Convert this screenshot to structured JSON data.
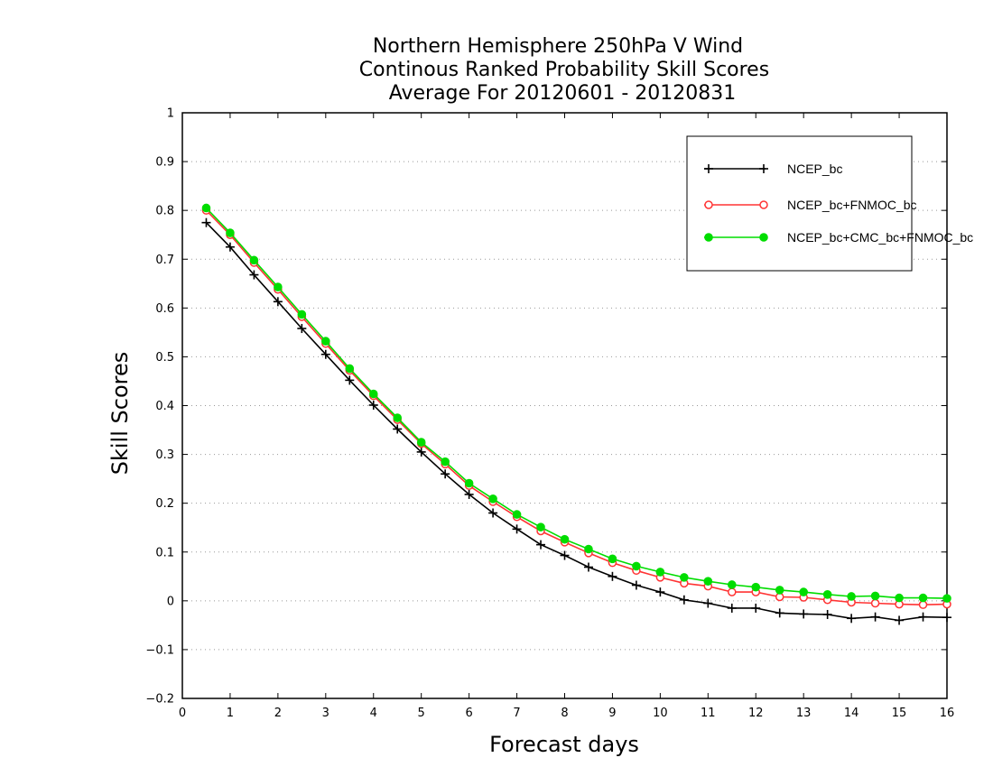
{
  "chart_data": {
    "type": "line",
    "title": [
      "Northern Hemisphere 250hPa V Wind",
      "Continous Ranked Probability Skill Scores",
      "Average For 20120601 - 20120831"
    ],
    "xlabel": "Forecast days",
    "ylabel": "Skill Scores",
    "xlim": [
      0,
      16
    ],
    "ylim": [
      -0.2,
      1
    ],
    "xticks": [
      0,
      1,
      2,
      3,
      4,
      5,
      6,
      7,
      8,
      9,
      10,
      11,
      12,
      13,
      14,
      15,
      16
    ],
    "yticks": [
      -0.2,
      -0.1,
      0,
      0.1,
      0.2,
      0.3,
      0.4,
      0.5,
      0.6,
      0.7,
      0.8,
      0.9,
      1
    ],
    "ytick_labels": [
      "−0.2",
      "−0.1",
      "0",
      "0.1",
      "0.2",
      "0.3",
      "0.4",
      "0.5",
      "0.6",
      "0.7",
      "0.8",
      "0.9",
      "1"
    ],
    "grid": "horizontal dotted",
    "legend_position": "top-right",
    "x": [
      0.5,
      1,
      1.5,
      2,
      2.5,
      3,
      3.5,
      4,
      4.5,
      5,
      5.5,
      6,
      6.5,
      7,
      7.5,
      8,
      8.5,
      9,
      9.5,
      10,
      10.5,
      11,
      11.5,
      12,
      12.5,
      13,
      13.5,
      14,
      14.5,
      15,
      15.5,
      16
    ],
    "series": [
      {
        "name": "NCEP_bc",
        "color": "#000000",
        "marker": "plus",
        "values": [
          0.775,
          0.725,
          0.668,
          0.613,
          0.558,
          0.505,
          0.452,
          0.401,
          0.352,
          0.305,
          0.26,
          0.218,
          0.18,
          0.147,
          0.115,
          0.093,
          0.069,
          0.05,
          0.032,
          0.018,
          0.002,
          -0.005,
          -0.015,
          -0.015,
          -0.025,
          -0.027,
          -0.028,
          -0.036,
          -0.033,
          -0.04,
          -0.033,
          -0.034
        ]
      },
      {
        "name": "NCEP_bc+FNMOC_bc",
        "color": "#ff3333",
        "marker": "open-circle",
        "values": [
          0.8,
          0.75,
          0.693,
          0.638,
          0.582,
          0.527,
          0.472,
          0.42,
          0.371,
          0.322,
          0.28,
          0.236,
          0.203,
          0.172,
          0.143,
          0.12,
          0.098,
          0.078,
          0.062,
          0.048,
          0.036,
          0.03,
          0.018,
          0.018,
          0.008,
          0.007,
          0.002,
          -0.003,
          -0.005,
          -0.007,
          -0.008,
          -0.007
        ]
      },
      {
        "name": "NCEP_bc+CMC_bc+FNMOC_bc",
        "color": "#00dd00",
        "marker": "filled-circle",
        "values": [
          0.805,
          0.754,
          0.698,
          0.643,
          0.587,
          0.532,
          0.476,
          0.424,
          0.375,
          0.325,
          0.285,
          0.241,
          0.209,
          0.177,
          0.151,
          0.126,
          0.106,
          0.086,
          0.071,
          0.059,
          0.048,
          0.04,
          0.033,
          0.028,
          0.022,
          0.018,
          0.013,
          0.009,
          0.01,
          0.006,
          0.006,
          0.005
        ]
      }
    ]
  }
}
